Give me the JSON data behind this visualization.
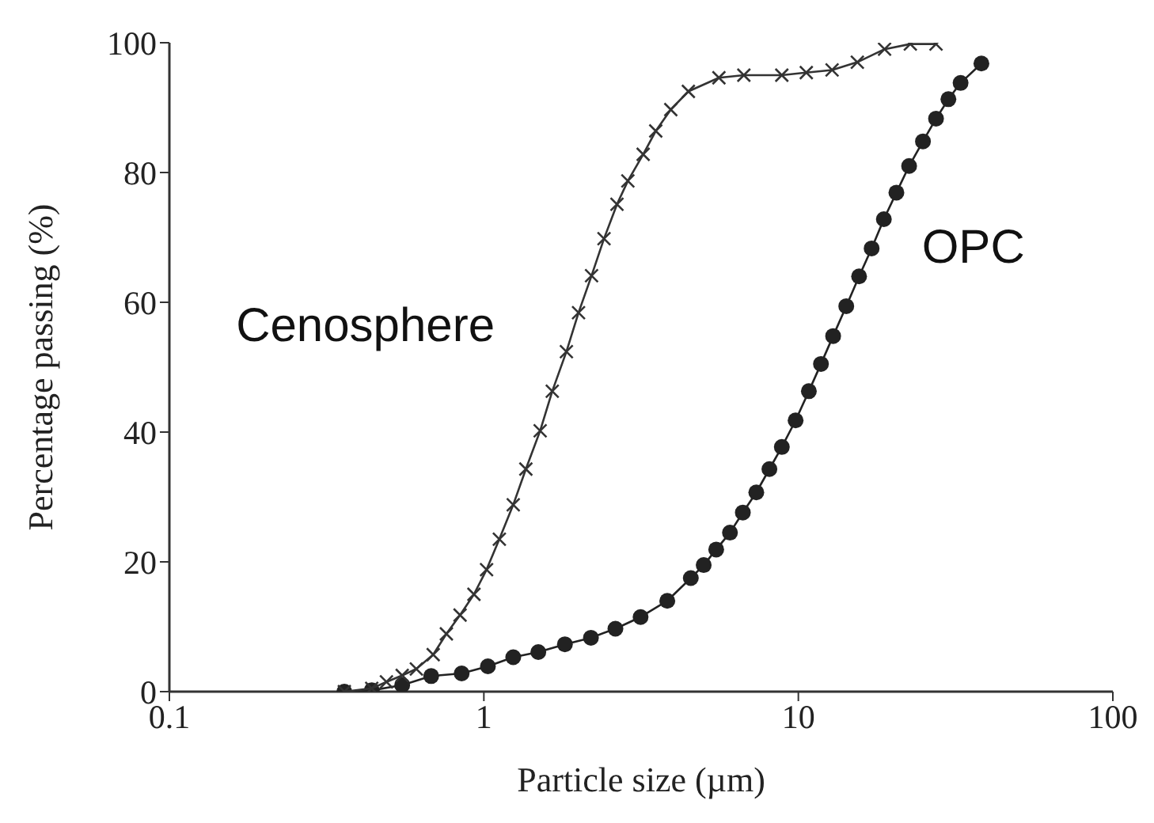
{
  "chart_data": {
    "type": "line",
    "xlabel": "Particle size (µm)",
    "ylabel": "Percentage passing  (%)",
    "log": "x",
    "xlim": [
      0.1,
      100
    ],
    "xticks": [
      0.1,
      1,
      10,
      100
    ],
    "ylim": [
      0,
      100
    ],
    "yticks": [
      0,
      20,
      40,
      60,
      80,
      100
    ],
    "grid": false,
    "legend": false,
    "series": [
      {
        "name": "Cenosphere",
        "color": "#333333",
        "marker": "cross",
        "x": [
          0.36,
          0.44,
          0.49,
          0.55,
          0.61,
          0.69,
          0.76,
          0.84,
          0.93,
          1.02,
          1.12,
          1.24,
          1.36,
          1.51,
          1.65,
          1.83,
          2.0,
          2.2,
          2.41,
          2.65,
          2.87,
          3.21,
          3.52,
          3.93,
          4.47,
          5.59,
          6.71,
          8.86,
          10.6,
          12.8,
          15.4,
          18.8,
          22.7,
          27.4
        ],
        "values": [
          0,
          0.5,
          1.5,
          2.5,
          3.5,
          5.7,
          8.9,
          11.8,
          15,
          18.8,
          23.5,
          28.8,
          34.3,
          40.2,
          46.3,
          52.4,
          58.4,
          64.1,
          69.8,
          75.1,
          78.7,
          82.8,
          86.4,
          89.7,
          92.5,
          94.6,
          95,
          95,
          95.4,
          95.8,
          97,
          99,
          99.8,
          99.8
        ]
      },
      {
        "name": "OPC",
        "color": "#222222",
        "marker": "circle",
        "x": [
          0.36,
          0.44,
          0.55,
          0.68,
          0.85,
          1.03,
          1.24,
          1.49,
          1.81,
          2.19,
          2.62,
          3.15,
          3.83,
          4.55,
          5.0,
          5.48,
          6.06,
          6.66,
          7.35,
          8.09,
          8.86,
          9.8,
          10.8,
          11.8,
          12.9,
          14.2,
          15.6,
          17.1,
          18.7,
          20.5,
          22.5,
          24.9,
          27.4,
          30.0,
          32.8,
          38.2
        ],
        "values": [
          0,
          0.2,
          1,
          2.4,
          2.8,
          3.9,
          5.3,
          6.1,
          7.3,
          8.3,
          9.7,
          11.5,
          14,
          17.5,
          19.5,
          21.9,
          24.5,
          27.6,
          30.7,
          34.3,
          37.7,
          41.8,
          46.3,
          50.5,
          54.8,
          59.4,
          64,
          68.3,
          72.8,
          76.9,
          81,
          84.8,
          88.3,
          91.3,
          93.8,
          96.8
        ]
      }
    ]
  }
}
